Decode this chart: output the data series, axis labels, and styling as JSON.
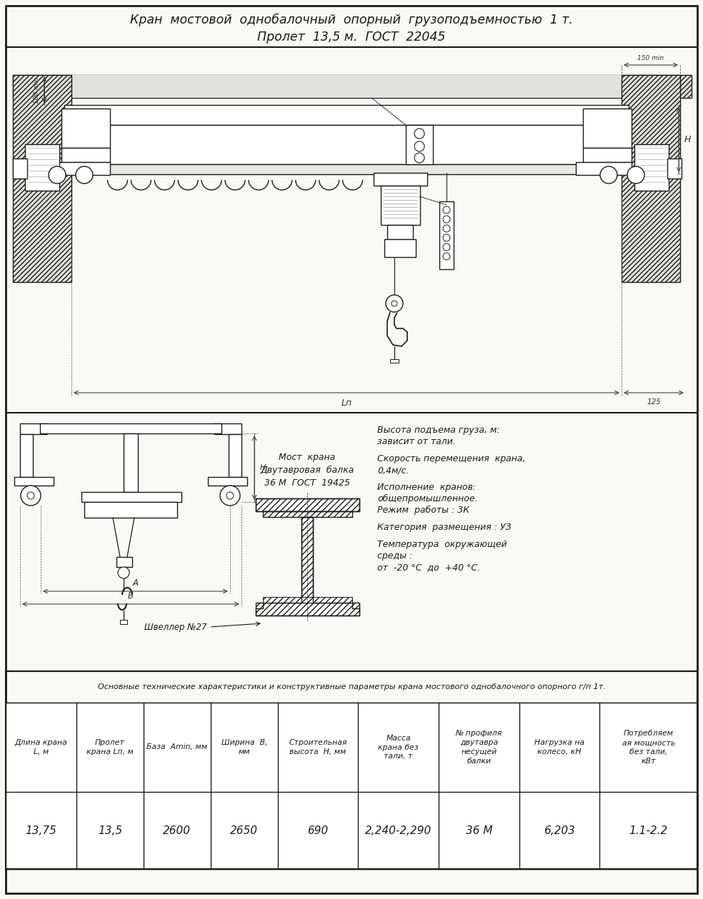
{
  "title_line1": "Кран  мостовой  однобалочный  опорный  грузоподъемностью  1 т.",
  "title_line2": "Пролет  13,5 м.  ГОСТ  22045",
  "bg_color": "#f8f8f6",
  "line_color": "#1a1a1a",
  "table_header_cols": [
    "Длина крана\nL, м",
    "Пролет\nкрана Lп, м",
    "База  Аmin, мм",
    "Ширина  B,\nмм",
    "Строительная\nвысота  H, мм",
    "Масса\nкрана без\nтали, т",
    "№ профиля\nдвутавра\nнесущей\nбалки",
    "Нагрузка на\nколесо, кН",
    "Потребляем\nая мощность\nбез тали,\nкВт"
  ],
  "table_data_row": [
    "13,75",
    "13,5",
    "2600",
    "2650",
    "690",
    "2,240-2,290",
    "36 М",
    "6,203",
    "1.1-2.2"
  ],
  "table_note": "Основные технические характеристики и конструктивные параметры крана мостового однобалочного опорного г/п 1т.",
  "specs": [
    [
      "Высота подъема груза, м:",
      "зависит от тали."
    ],
    [
      "Скорость перемещения  крана,",
      "0,4м/с."
    ],
    [
      "Исполнение  кранов:",
      "общепромышленное.",
      "Режим  работы : 3К"
    ],
    [
      "Категория  размещения : УЗ"
    ],
    [
      "Температура  окружающей",
      "среды :",
      "от  -20 °С  до  +40 °С."
    ]
  ],
  "beam_label": "Мост  крана\nДвутавровая  балка\n36 М  ГОСТ  19425",
  "channel_label": "Швеллер №27",
  "dim_100": "100 min",
  "dim_150": "150 min",
  "dim_125": "125",
  "dim_Ln": "Lп",
  "dim_H": "H",
  "dim_A": "A",
  "dim_B": "B"
}
